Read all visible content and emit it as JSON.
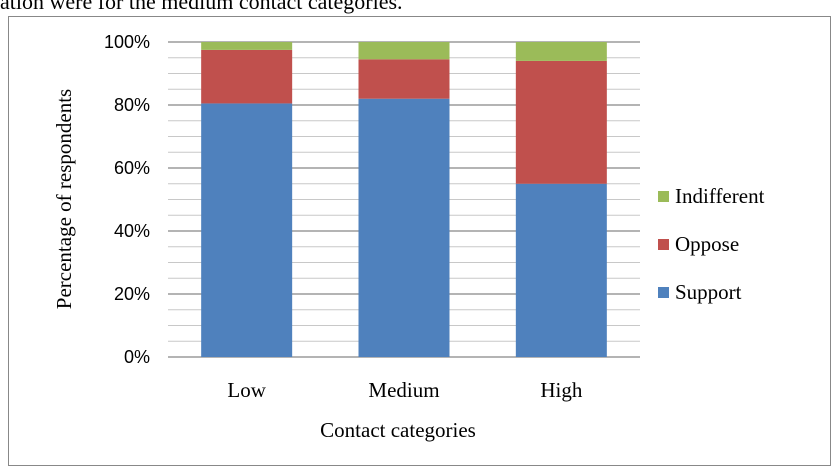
{
  "caption": "ation were for the medium contact categories.",
  "chart_data": {
    "type": "bar",
    "stacked": true,
    "categories": [
      "Low",
      "Medium",
      "High"
    ],
    "series": [
      {
        "name": "Support",
        "values": [
          80.5,
          82,
          55
        ],
        "color": "#4F81BD"
      },
      {
        "name": "Oppose",
        "values": [
          17,
          12.5,
          39
        ],
        "color": "#C0504D"
      },
      {
        "name": "Indifferent",
        "values": [
          2.5,
          5.5,
          6
        ],
        "color": "#9BBB59"
      }
    ],
    "yticks": [
      "0%",
      "20%",
      "40%",
      "60%",
      "80%",
      "100%"
    ],
    "ylim": [
      0,
      100
    ],
    "xlabel": "Contact categories",
    "ylabel": "Percentage of respondents",
    "legend_position": "right",
    "grid": true
  }
}
